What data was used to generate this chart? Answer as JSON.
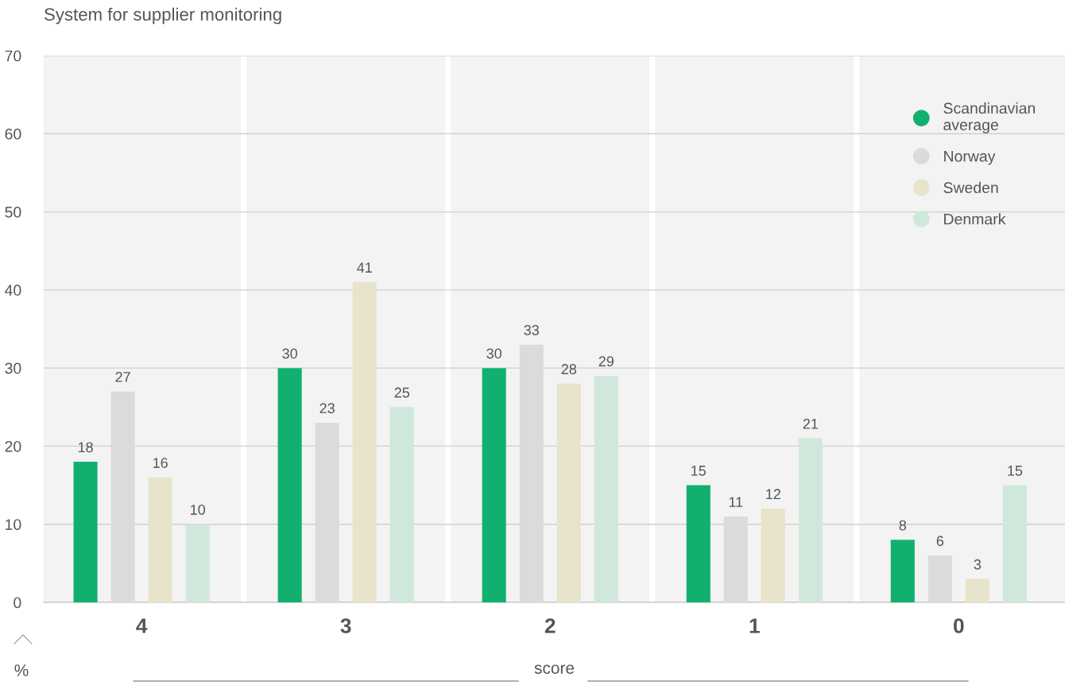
{
  "chart_data": {
    "type": "bar",
    "title": "System for supplier monitoring",
    "xlabel": "score",
    "ylabel": "%",
    "categories": [
      "4",
      "3",
      "2",
      "1",
      "0"
    ],
    "series": [
      {
        "name": "Scandinavian\naverage",
        "color": "#12b06e",
        "values": [
          18,
          30,
          30,
          15,
          8
        ]
      },
      {
        "name": "Norway",
        "color": "#dadbdd",
        "values": [
          27,
          23,
          33,
          11,
          6
        ]
      },
      {
        "name": "Sweden",
        "color": "#e8e3cb",
        "values": [
          16,
          41,
          28,
          12,
          3
        ]
      },
      {
        "name": "Denmark",
        "color": "#cfe8db",
        "values": [
          10,
          25,
          29,
          21,
          15
        ]
      }
    ],
    "ylim": [
      0,
      70
    ],
    "yticks": [
      0,
      10,
      20,
      30,
      40,
      50,
      60,
      70
    ],
    "grid": "y",
    "legend": "top right",
    "data_labels": true
  }
}
